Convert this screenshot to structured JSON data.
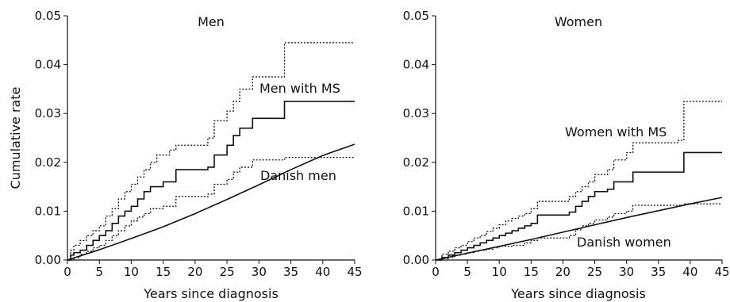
{
  "chart_data": [
    {
      "type": "line",
      "title": "Men",
      "xlabel": "Years since diagnosis",
      "ylabel": "Cumulative rate",
      "xlim": [
        0,
        45
      ],
      "ylim": [
        0,
        0.05
      ],
      "x_ticks": [
        "0",
        "5",
        "10",
        "15",
        "20",
        "25",
        "30",
        "35",
        "40",
        "45"
      ],
      "y_ticks": [
        "0.00",
        "0.01",
        "0.02",
        "0.03",
        "0.04",
        "0.05"
      ],
      "grid": false,
      "annotations": [
        "Men with MS",
        "Danish men"
      ],
      "series": [
        {
          "name": "Men with MS",
          "style": "solid-step",
          "points": [
            [
              0,
              0
            ],
            [
              0.5,
              0.001
            ],
            [
              1,
              0.0015
            ],
            [
              2,
              0.002
            ],
            [
              3,
              0.003
            ],
            [
              4,
              0.004
            ],
            [
              5,
              0.005
            ],
            [
              6,
              0.006
            ],
            [
              7,
              0.0075
            ],
            [
              8,
              0.009
            ],
            [
              9,
              0.01
            ],
            [
              10,
              0.011
            ],
            [
              11,
              0.0125
            ],
            [
              12,
              0.014
            ],
            [
              13,
              0.015
            ],
            [
              15,
              0.016
            ],
            [
              17,
              0.0185
            ],
            [
              22,
              0.019
            ],
            [
              23,
              0.0215
            ],
            [
              25,
              0.0235
            ],
            [
              26,
              0.0255
            ],
            [
              27,
              0.027
            ],
            [
              29,
              0.029
            ],
            [
              34,
              0.0325
            ],
            [
              45,
              0.0325
            ]
          ]
        },
        {
          "name": "",
          "style": "dotted-step",
          "points": [
            [
              0,
              0
            ],
            [
              0.5,
              0.002
            ],
            [
              1,
              0.003
            ],
            [
              2,
              0.004
            ],
            [
              3,
              0.005
            ],
            [
              4,
              0.006
            ],
            [
              5,
              0.007
            ],
            [
              6,
              0.009
            ],
            [
              7,
              0.0105
            ],
            [
              8,
              0.0125
            ],
            [
              9,
              0.014
            ],
            [
              10,
              0.0155
            ],
            [
              11,
              0.017
            ],
            [
              12,
              0.0185
            ],
            [
              13,
              0.02
            ],
            [
              14,
              0.0215
            ],
            [
              16,
              0.0225
            ],
            [
              17,
              0.0235
            ],
            [
              22,
              0.025
            ],
            [
              23,
              0.0285
            ],
            [
              25,
              0.0305
            ],
            [
              26,
              0.0325
            ],
            [
              27,
              0.035
            ],
            [
              29,
              0.0375
            ],
            [
              34,
              0.0445
            ],
            [
              45,
              0.0445
            ]
          ]
        },
        {
          "name": "",
          "style": "dotted-step",
          "points": [
            [
              0,
              0
            ],
            [
              1,
              0.0005
            ],
            [
              2,
              0.0012
            ],
            [
              3,
              0.0018
            ],
            [
              4,
              0.0025
            ],
            [
              5,
              0.003
            ],
            [
              6,
              0.004
            ],
            [
              7,
              0.005
            ],
            [
              8,
              0.006
            ],
            [
              9,
              0.007
            ],
            [
              10,
              0.008
            ],
            [
              11,
              0.0088
            ],
            [
              12,
              0.0095
            ],
            [
              13,
              0.0105
            ],
            [
              15,
              0.011
            ],
            [
              17,
              0.013
            ],
            [
              22,
              0.0135
            ],
            [
              23,
              0.0155
            ],
            [
              25,
              0.0165
            ],
            [
              26,
              0.018
            ],
            [
              27,
              0.019
            ],
            [
              29,
              0.0205
            ],
            [
              34,
              0.021
            ],
            [
              45,
              0.021
            ]
          ]
        },
        {
          "name": "Danish men",
          "style": "solid-curve",
          "points": [
            [
              0,
              0
            ],
            [
              5,
              0.0021
            ],
            [
              10,
              0.0044
            ],
            [
              15,
              0.0068
            ],
            [
              20,
              0.0095
            ],
            [
              25,
              0.0124
            ],
            [
              30,
              0.0154
            ],
            [
              35,
              0.0185
            ],
            [
              40,
              0.0214
            ],
            [
              45,
              0.0237
            ]
          ]
        }
      ]
    },
    {
      "type": "line",
      "title": "Women",
      "xlabel": "Years since diagnosis",
      "ylabel": "",
      "xlim": [
        0,
        45
      ],
      "ylim": [
        0,
        0.05
      ],
      "x_ticks": [
        "0",
        "5",
        "10",
        "15",
        "20",
        "25",
        "30",
        "35",
        "40",
        "45"
      ],
      "y_ticks": [
        "0.00",
        "0.01",
        "0.02",
        "0.03",
        "0.04",
        "0.05"
      ],
      "grid": false,
      "annotations": [
        "Women with MS",
        "Danish women"
      ],
      "series": [
        {
          "name": "Women with MS",
          "style": "solid-step",
          "points": [
            [
              0,
              0
            ],
            [
              1,
              0.0005
            ],
            [
              2,
              0.001
            ],
            [
              3,
              0.0015
            ],
            [
              4,
              0.002
            ],
            [
              5,
              0.0025
            ],
            [
              6,
              0.003
            ],
            [
              7,
              0.0035
            ],
            [
              8,
              0.004
            ],
            [
              9,
              0.0045
            ],
            [
              10,
              0.005
            ],
            [
              11,
              0.0055
            ],
            [
              12,
              0.006
            ],
            [
              13,
              0.0065
            ],
            [
              14,
              0.007
            ],
            [
              15,
              0.0075
            ],
            [
              16,
              0.0092
            ],
            [
              21,
              0.0098
            ],
            [
              22,
              0.011
            ],
            [
              23,
              0.012
            ],
            [
              24,
              0.013
            ],
            [
              25,
              0.014
            ],
            [
              27,
              0.0145
            ],
            [
              28,
              0.016
            ],
            [
              30,
              0.016
            ],
            [
              31,
              0.018
            ],
            [
              38,
              0.018
            ],
            [
              39,
              0.022
            ],
            [
              45,
              0.022
            ]
          ]
        },
        {
          "name": "",
          "style": "dotted-step",
          "points": [
            [
              0,
              0
            ],
            [
              1,
              0.0012
            ],
            [
              2,
              0.0018
            ],
            [
              3,
              0.0025
            ],
            [
              4,
              0.003
            ],
            [
              5,
              0.0038
            ],
            [
              6,
              0.0045
            ],
            [
              7,
              0.005
            ],
            [
              8,
              0.0058
            ],
            [
              9,
              0.0065
            ],
            [
              10,
              0.0072
            ],
            [
              11,
              0.008
            ],
            [
              12,
              0.0085
            ],
            [
              13,
              0.009
            ],
            [
              14,
              0.0095
            ],
            [
              15,
              0.0105
            ],
            [
              16,
              0.012
            ],
            [
              21,
              0.013
            ],
            [
              22,
              0.014
            ],
            [
              23,
              0.015
            ],
            [
              24,
              0.016
            ],
            [
              25,
              0.0175
            ],
            [
              27,
              0.0185
            ],
            [
              28,
              0.0205
            ],
            [
              30,
              0.022
            ],
            [
              31,
              0.024
            ],
            [
              38,
              0.0245
            ],
            [
              39,
              0.0325
            ],
            [
              45,
              0.0325
            ]
          ]
        },
        {
          "name": "",
          "style": "dotted-step",
          "points": [
            [
              0,
              0
            ],
            [
              1,
              0.0003
            ],
            [
              2,
              0.0006
            ],
            [
              3,
              0.001
            ],
            [
              4,
              0.0012
            ],
            [
              5,
              0.0015
            ],
            [
              6,
              0.0018
            ],
            [
              7,
              0.002
            ],
            [
              8,
              0.0022
            ],
            [
              9,
              0.0025
            ],
            [
              10,
              0.0028
            ],
            [
              12,
              0.003
            ],
            [
              14,
              0.0035
            ],
            [
              15,
              0.004
            ],
            [
              16,
              0.0045
            ],
            [
              21,
              0.005
            ],
            [
              22,
              0.0062
            ],
            [
              23,
              0.007
            ],
            [
              24,
              0.0075
            ],
            [
              25,
              0.0082
            ],
            [
              27,
              0.0088
            ],
            [
              28,
              0.0095
            ],
            [
              30,
              0.01
            ],
            [
              31,
              0.0112
            ],
            [
              38,
              0.0112
            ],
            [
              39,
              0.0115
            ],
            [
              45,
              0.0115
            ]
          ]
        },
        {
          "name": "Danish women",
          "style": "solid-curve",
          "points": [
            [
              0,
              0
            ],
            [
              5,
              0.0014
            ],
            [
              10,
              0.0028
            ],
            [
              15,
              0.0042
            ],
            [
              20,
              0.0057
            ],
            [
              25,
              0.0072
            ],
            [
              30,
              0.0087
            ],
            [
              35,
              0.0101
            ],
            [
              40,
              0.0115
            ],
            [
              45,
              0.0128
            ]
          ]
        }
      ]
    }
  ]
}
